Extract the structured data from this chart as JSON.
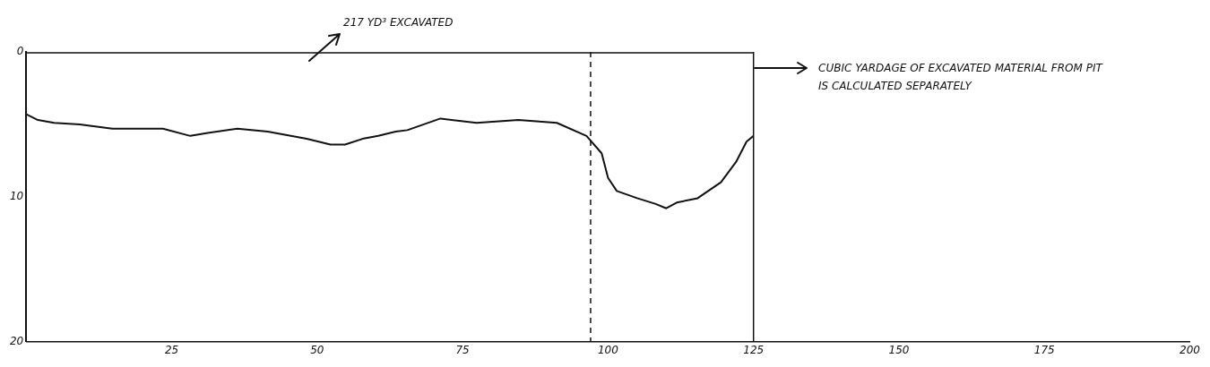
{
  "chart_data": {
    "type": "line",
    "color": "#111111",
    "x": [
      0,
      2,
      4.8,
      9.2,
      14.8,
      23.5,
      28.2,
      31.2,
      36.3,
      41.5,
      48.2,
      52.3,
      54.8,
      57.8,
      60.5,
      63.5,
      65.5,
      71.2,
      77.4,
      84.6,
      91.2,
      96.3,
      98.9,
      100,
      101.5,
      105,
      108.2,
      110,
      111.8,
      115.4,
      119.4,
      122,
      123.8,
      125
    ],
    "values": [
      4.3,
      4.7,
      4.9,
      5.0,
      5.3,
      5.3,
      5.8,
      5.6,
      5.3,
      5.5,
      6.0,
      6.4,
      6.4,
      6.0,
      5.8,
      5.5,
      5.4,
      4.6,
      4.9,
      4.7,
      4.9,
      5.8,
      7.0,
      8.7,
      9.6,
      10.1,
      10.5,
      10.8,
      10.4,
      10.1,
      9.0,
      7.6,
      6.2,
      5.8
    ],
    "xlim": [
      0,
      200
    ],
    "ylim": [
      20,
      0
    ],
    "xticks": [
      25,
      50,
      75,
      100,
      125,
      150,
      175,
      200
    ],
    "yticks": [
      0,
      10,
      20
    ],
    "grid": false,
    "legend": false,
    "ref_lines": [
      {
        "axis": "x",
        "value": 97,
        "color": "#111111",
        "line_style": "dashed"
      },
      {
        "axis": "x",
        "value": 125,
        "color": "#111111",
        "line_style": "solid"
      }
    ],
    "annotations": [
      "217 YD³ EXCAVATED",
      "CUBIC YARDAGE OF EXCAVATED MATERIAL FROM PIT IS CALCULATED SEPARATELY"
    ]
  }
}
